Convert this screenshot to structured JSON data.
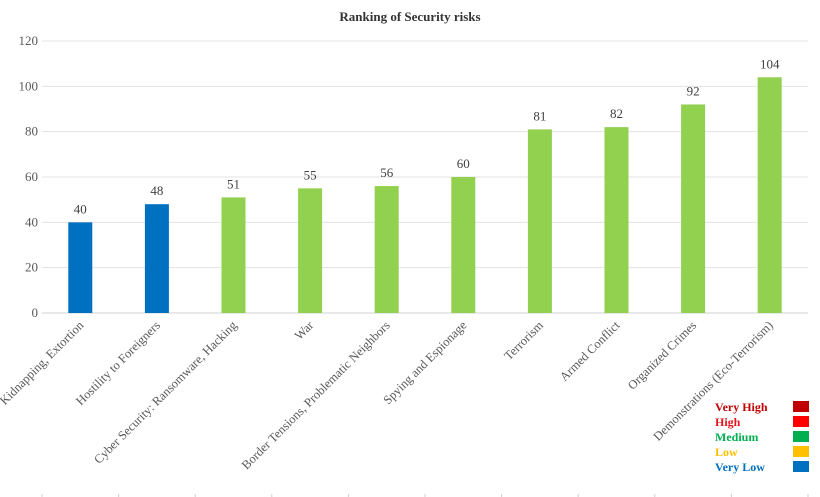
{
  "chart_data": {
    "type": "bar",
    "title": "Ranking of Security risks",
    "xlabel": "",
    "ylabel": "",
    "ylim": [
      0,
      120
    ],
    "yticks": [
      0,
      20,
      40,
      60,
      80,
      100,
      120
    ],
    "grid": true,
    "categories": [
      "Kidnapping, Extortion",
      "Hostility to Foreigners",
      "Cyber Security: Ransomware, Hacking",
      "War",
      "Border Tensions, Problematic Neighbors",
      "Spying and Espionage",
      "Terrorism",
      "Armed Conflict",
      "Organized Crimes",
      "Demonstrations (Eco-Terrorism)"
    ],
    "values": [
      40,
      48,
      51,
      55,
      56,
      60,
      81,
      82,
      92,
      104
    ],
    "bar_levels": [
      "Very Low",
      "Very Low",
      "Medium",
      "Medium",
      "Medium",
      "Medium",
      "Medium",
      "Medium",
      "Medium",
      "Medium"
    ],
    "bar_colors": [
      "#0070C0",
      "#0070C0",
      "#92D050",
      "#92D050",
      "#92D050",
      "#92D050",
      "#92D050",
      "#92D050",
      "#92D050",
      "#92D050"
    ],
    "legend": {
      "placement": "bottom-right",
      "items": [
        {
          "label": "Very High",
          "text_color": "#C00000",
          "swatch_color": "#C00000"
        },
        {
          "label": "High",
          "text_color": "#E8141B",
          "swatch_color": "#FF0000"
        },
        {
          "label": "Medium",
          "text_color": "#00B050",
          "swatch_color": "#00B050"
        },
        {
          "label": "Low",
          "text_color": "#FFC000",
          "swatch_color": "#FFC000"
        },
        {
          "label": "Very Low",
          "text_color": "#0070C0",
          "swatch_color": "#0070C0"
        }
      ]
    }
  }
}
